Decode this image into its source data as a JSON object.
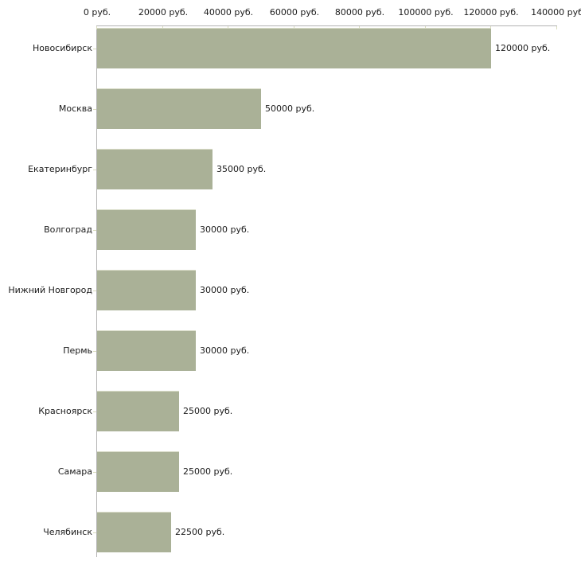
{
  "chart_data": {
    "type": "bar",
    "orientation": "horizontal",
    "title": "",
    "categories": [
      "Новосибирск",
      "Москва",
      "Екатеринбург",
      "Волгоград",
      "Нижний Новгород",
      "Пермь",
      "Красноярск",
      "Самара",
      "Челябинск"
    ],
    "values": [
      120000,
      50000,
      35000,
      30000,
      30000,
      30000,
      25000,
      25000,
      22500
    ],
    "value_labels": [
      "120000 руб.",
      "50000 руб.",
      "35000 руб.",
      "30000 руб.",
      "30000 руб.",
      "30000 руб.",
      "25000 руб.",
      "25000 руб.",
      "22500 руб."
    ],
    "x_tick_values": [
      0,
      20000,
      40000,
      60000,
      80000,
      100000,
      120000,
      140000
    ],
    "x_tick_labels": [
      "0 руб.",
      "20000 руб.",
      "40000 руб.",
      "60000 руб.",
      "80000 руб.",
      "100000 руб.",
      "120000 руб.",
      "140000 руб"
    ],
    "xlim": [
      0,
      140000
    ],
    "unit": "руб.",
    "grid": false,
    "legend_position": "none",
    "colors": {
      "bar": "#aab197",
      "bar_top_edge": "#d9dcc8",
      "axis_line": "#b3b3b3",
      "tick_mark": "#d9dcbe",
      "text": "#1a1a1a",
      "background": "#ffffff"
    }
  }
}
